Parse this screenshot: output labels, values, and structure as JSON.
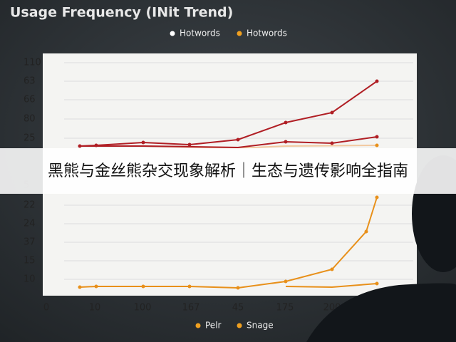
{
  "title": "Usage Frequency (INit Trend)",
  "top_legend": [
    "Hotwords",
    "Hotwords"
  ],
  "upper_axis_labels": [
    "110",
    "63",
    "66",
    "80",
    "25"
  ],
  "lower_axis_labels": [
    "5",
    "22",
    "24",
    "37",
    "15",
    "10"
  ],
  "x_axis_labels": [
    "0",
    "10",
    "100",
    "167",
    "45",
    "175",
    "200"
  ],
  "bottom_legend": [
    "Pelr",
    "Snage"
  ],
  "banner": "黑熊与金丝熊杂交现象解析｜生态与遗传影响全指南"
}
